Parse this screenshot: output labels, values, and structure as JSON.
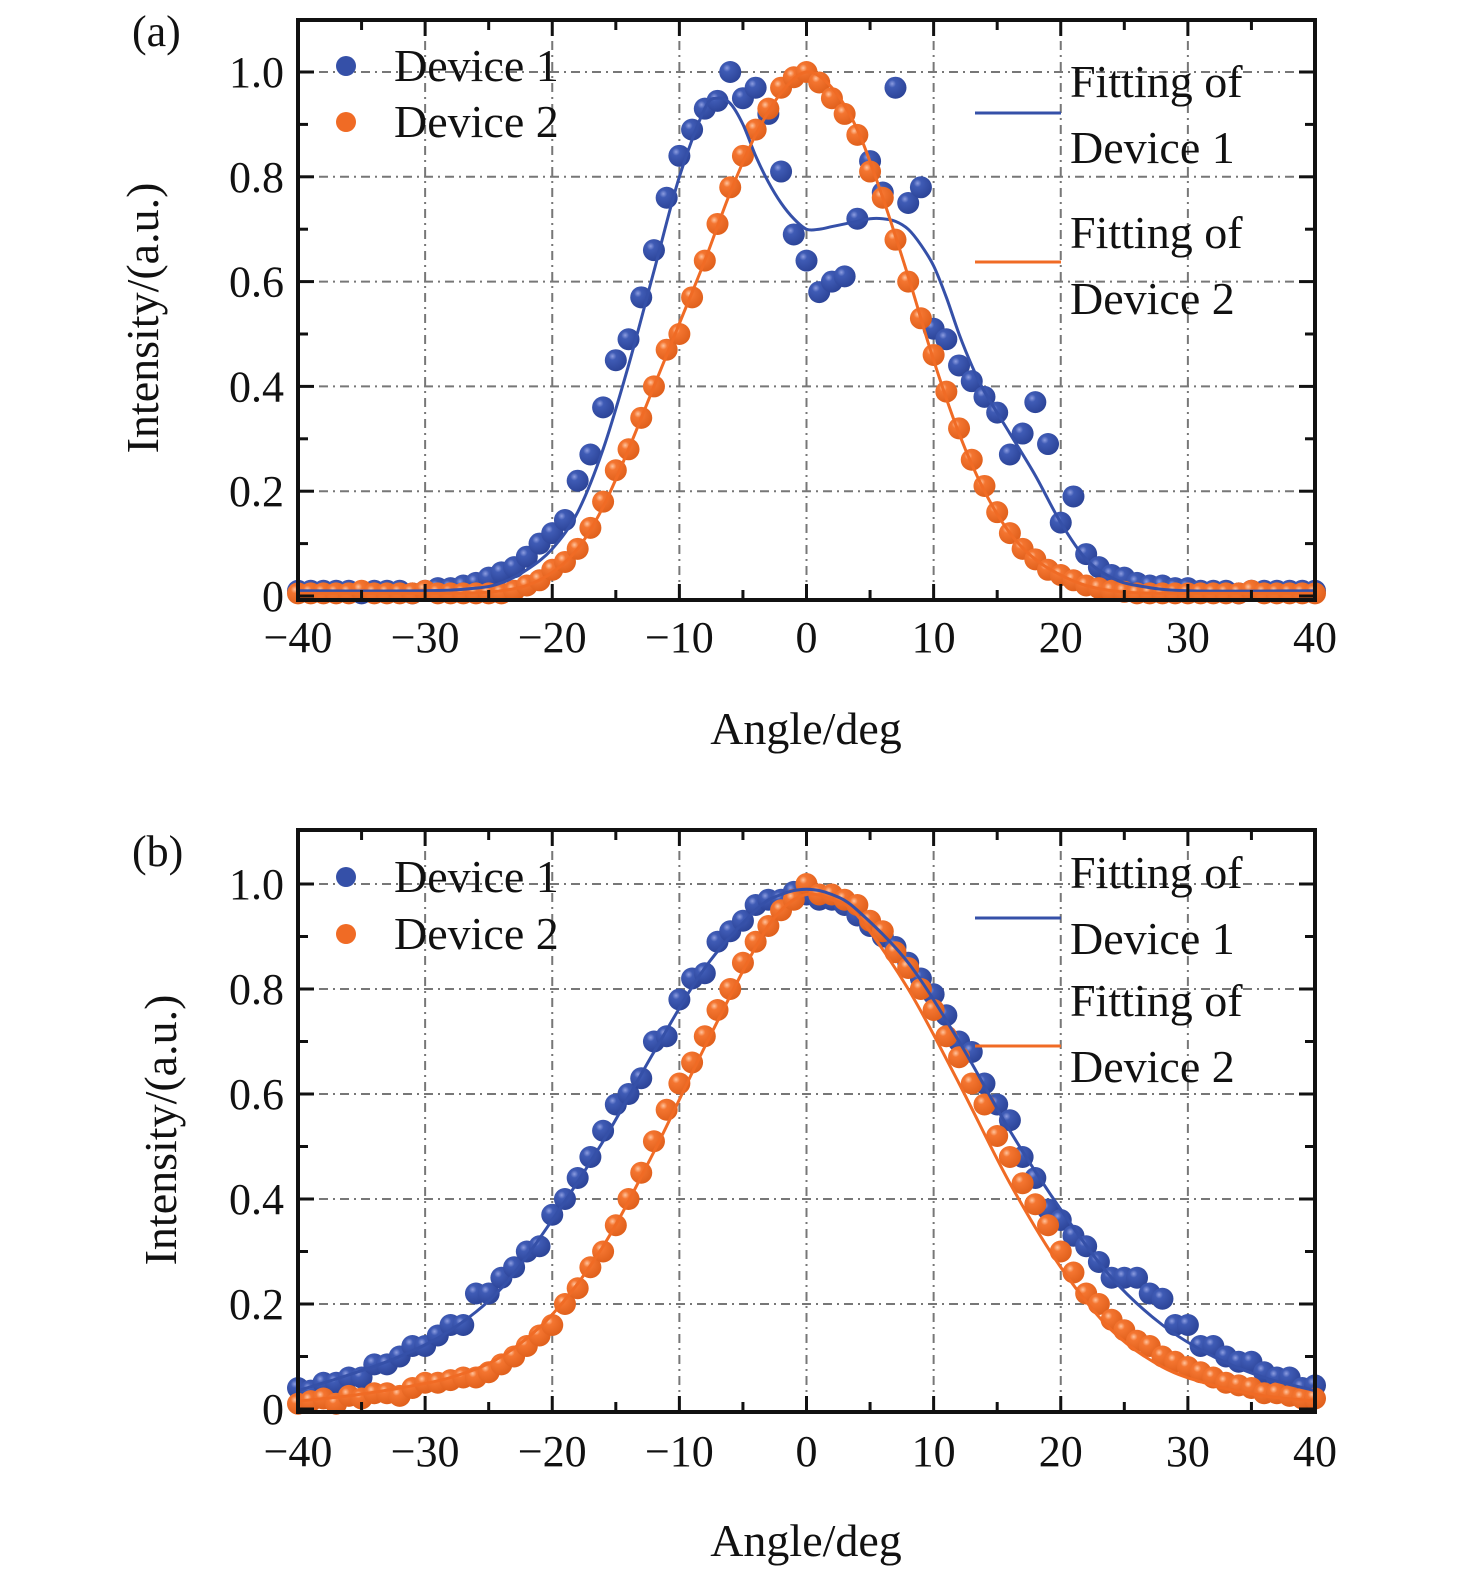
{
  "colors": {
    "device1": "#3550a8",
    "device2": "#f06b25",
    "grid": "#777777",
    "axis": "#111111"
  },
  "chart_data": [
    {
      "type": "scatter",
      "panel_label": "(a)",
      "xlabel": "Angle/deg",
      "ylabel": "Intensity/(a.u.)",
      "xlim": [
        -40,
        40
      ],
      "ylim": [
        0,
        1.1
      ],
      "xticks": [
        -40,
        -30,
        -20,
        -10,
        0,
        10,
        20,
        30,
        40
      ],
      "xtick_labels": [
        "−40",
        "−30",
        "−20",
        "−10",
        "0",
        "10",
        "20",
        "30",
        "40"
      ],
      "yticks": [
        0,
        0.2,
        0.4,
        0.6,
        0.8,
        1.0
      ],
      "ytick_labels": [
        "0",
        "0.2",
        "0.4",
        "0.6",
        "0.8",
        "1.0"
      ],
      "grid": true,
      "legend_left": [
        "Device 1",
        "Device 2"
      ],
      "legend_right": [
        [
          "Fitting of",
          "Device 1"
        ],
        [
          "Fitting of",
          "Device 2"
        ]
      ],
      "series": [
        {
          "name": "Device 1",
          "kind": "points",
          "x": [
            -40,
            -39,
            -38,
            -37,
            -36,
            -35,
            -34,
            -33,
            -32,
            -31,
            -30,
            -29,
            -28,
            -27,
            -26,
            -25,
            -24,
            -23,
            -22,
            -21,
            -20,
            -19,
            -18,
            -17,
            -16,
            -15,
            -14,
            -13,
            -12,
            -11,
            -10,
            -9,
            -8,
            -7,
            -6,
            -5,
            -4,
            -3,
            -2,
            -1,
            0,
            1,
            2,
            3,
            4,
            5,
            6,
            7,
            8,
            9,
            10,
            11,
            12,
            13,
            14,
            15,
            16,
            17,
            18,
            19,
            20,
            21,
            22,
            23,
            24,
            25,
            26,
            27,
            28,
            29,
            30,
            31,
            32,
            33,
            34,
            35,
            36,
            37,
            38,
            39,
            40
          ],
          "y": [
            0.01,
            0.01,
            0.01,
            0.01,
            0.01,
            0.005,
            0.01,
            0.01,
            0.01,
            0.005,
            0.01,
            0.015,
            0.015,
            0.02,
            0.025,
            0.035,
            0.045,
            0.055,
            0.075,
            0.1,
            0.12,
            0.145,
            0.22,
            0.27,
            0.36,
            0.45,
            0.49,
            0.57,
            0.66,
            0.76,
            0.84,
            0.89,
            0.93,
            0.945,
            1.0,
            0.95,
            0.97,
            0.92,
            0.81,
            0.69,
            0.64,
            0.58,
            0.6,
            0.61,
            0.72,
            0.83,
            0.77,
            0.97,
            0.75,
            0.78,
            0.51,
            0.49,
            0.44,
            0.41,
            0.38,
            0.35,
            0.27,
            0.31,
            0.37,
            0.29,
            0.14,
            0.19,
            0.08,
            0.055,
            0.04,
            0.035,
            0.025,
            0.02,
            0.02,
            0.015,
            0.015,
            0.01,
            0.01,
            0.01,
            0.005,
            0.01,
            0.01,
            0.01,
            0.01,
            0.01,
            0.01
          ]
        },
        {
          "name": "Device 2",
          "kind": "points",
          "x": [
            -40,
            -39,
            -38,
            -37,
            -36,
            -35,
            -34,
            -33,
            -32,
            -31,
            -30,
            -29,
            -28,
            -27,
            -26,
            -25,
            -24,
            -23,
            -22,
            -21,
            -20,
            -19,
            -18,
            -17,
            -16,
            -15,
            -14,
            -13,
            -12,
            -11,
            -10,
            -9,
            -8,
            -7,
            -6,
            -5,
            -4,
            -3,
            -2,
            -1,
            0,
            1,
            2,
            3,
            4,
            5,
            6,
            7,
            8,
            9,
            10,
            11,
            12,
            13,
            14,
            15,
            16,
            17,
            18,
            19,
            20,
            21,
            22,
            23,
            24,
            25,
            26,
            27,
            28,
            29,
            30,
            31,
            32,
            33,
            34,
            35,
            36,
            37,
            38,
            39,
            40
          ],
          "y": [
            0.005,
            0.005,
            0.005,
            0.005,
            0.005,
            0.01,
            0.005,
            0.005,
            0.005,
            0.005,
            0.01,
            0.005,
            0.005,
            0.005,
            0.005,
            0.005,
            0.005,
            0.01,
            0.02,
            0.03,
            0.05,
            0.065,
            0.09,
            0.13,
            0.18,
            0.24,
            0.28,
            0.34,
            0.4,
            0.47,
            0.5,
            0.57,
            0.64,
            0.71,
            0.78,
            0.84,
            0.89,
            0.93,
            0.97,
            0.99,
            1.0,
            0.98,
            0.95,
            0.92,
            0.88,
            0.81,
            0.76,
            0.68,
            0.6,
            0.53,
            0.46,
            0.39,
            0.32,
            0.26,
            0.21,
            0.16,
            0.12,
            0.09,
            0.07,
            0.05,
            0.04,
            0.03,
            0.02,
            0.015,
            0.01,
            0.008,
            0.005,
            0.005,
            0.005,
            0.005,
            0.005,
            0.005,
            0.005,
            0.005,
            0.005,
            0.01,
            0.005,
            0.005,
            0.005,
            0.005,
            0.005
          ]
        },
        {
          "name": "Fitting of Device 1",
          "kind": "line",
          "x": [
            -40,
            -30,
            -26,
            -24,
            -22,
            -20,
            -18,
            -16,
            -14,
            -12,
            -10,
            -8,
            -7,
            -6,
            -5,
            -4,
            -3,
            -2,
            -1,
            0,
            1,
            2,
            3,
            4,
            5,
            6,
            7,
            8,
            9,
            10,
            11,
            12,
            13,
            14,
            16,
            18,
            20,
            22,
            24,
            26,
            30,
            40
          ],
          "y": [
            0.01,
            0.01,
            0.015,
            0.025,
            0.05,
            0.09,
            0.16,
            0.28,
            0.44,
            0.62,
            0.8,
            0.93,
            0.95,
            0.94,
            0.9,
            0.84,
            0.79,
            0.75,
            0.72,
            0.7,
            0.7,
            0.705,
            0.71,
            0.715,
            0.72,
            0.72,
            0.715,
            0.7,
            0.67,
            0.63,
            0.57,
            0.5,
            0.44,
            0.39,
            0.31,
            0.23,
            0.14,
            0.07,
            0.035,
            0.02,
            0.01,
            0.01
          ]
        },
        {
          "name": "Fitting of Device 2",
          "kind": "line",
          "x": [
            -40,
            -30,
            -26,
            -24,
            -22,
            -20,
            -18,
            -16,
            -14,
            -12,
            -10,
            -8,
            -6,
            -4,
            -2,
            0,
            2,
            4,
            6,
            8,
            10,
            12,
            14,
            16,
            18,
            20,
            22,
            24,
            26,
            30,
            40
          ],
          "y": [
            0.005,
            0.005,
            0.006,
            0.01,
            0.02,
            0.045,
            0.09,
            0.17,
            0.28,
            0.4,
            0.52,
            0.64,
            0.77,
            0.88,
            0.96,
            1.0,
            0.97,
            0.89,
            0.76,
            0.61,
            0.45,
            0.31,
            0.2,
            0.12,
            0.07,
            0.04,
            0.02,
            0.01,
            0.006,
            0.005,
            0.005
          ]
        }
      ]
    },
    {
      "type": "scatter",
      "panel_label": "(b)",
      "xlabel": "Angle/deg",
      "ylabel": "Intensity/(a.u.)",
      "xlim": [
        -40,
        40
      ],
      "ylim": [
        0,
        1.1
      ],
      "xticks": [
        -40,
        -30,
        -20,
        -10,
        0,
        10,
        20,
        30,
        40
      ],
      "xtick_labels": [
        "−40",
        "−30",
        "−20",
        "−10",
        "0",
        "10",
        "20",
        "30",
        "40"
      ],
      "yticks": [
        0,
        0.2,
        0.4,
        0.6,
        0.8,
        1.0
      ],
      "ytick_labels": [
        "0",
        "0.2",
        "0.4",
        "0.6",
        "0.8",
        "1.0"
      ],
      "grid": true,
      "legend_left": [
        "Device 1",
        "Device 2"
      ],
      "legend_right": [
        [
          "Fitting of",
          "Device 1"
        ],
        [
          "Fitting of",
          "Device 2"
        ]
      ],
      "series": [
        {
          "name": "Device 1",
          "kind": "points",
          "x": [
            -40,
            -39,
            -38,
            -37,
            -36,
            -35,
            -34,
            -33,
            -32,
            -31,
            -30,
            -29,
            -28,
            -27,
            -26,
            -25,
            -24,
            -23,
            -22,
            -21,
            -20,
            -19,
            -18,
            -17,
            -16,
            -15,
            -14,
            -13,
            -12,
            -11,
            -10,
            -9,
            -8,
            -7,
            -6,
            -5,
            -4,
            -3,
            -2,
            -1,
            0,
            1,
            2,
            3,
            4,
            5,
            6,
            7,
            8,
            9,
            10,
            11,
            12,
            13,
            14,
            15,
            16,
            17,
            18,
            19,
            20,
            21,
            22,
            23,
            24,
            25,
            26,
            27,
            28,
            29,
            30,
            31,
            32,
            33,
            34,
            35,
            36,
            37,
            38,
            39,
            40
          ],
          "y": [
            0.04,
            0.035,
            0.05,
            0.05,
            0.06,
            0.06,
            0.085,
            0.085,
            0.1,
            0.12,
            0.12,
            0.14,
            0.16,
            0.16,
            0.22,
            0.22,
            0.25,
            0.27,
            0.3,
            0.31,
            0.37,
            0.4,
            0.44,
            0.48,
            0.53,
            0.58,
            0.6,
            0.63,
            0.7,
            0.71,
            0.78,
            0.82,
            0.83,
            0.89,
            0.91,
            0.93,
            0.96,
            0.97,
            0.97,
            0.985,
            0.98,
            0.97,
            0.97,
            0.96,
            0.94,
            0.92,
            0.9,
            0.88,
            0.85,
            0.82,
            0.79,
            0.75,
            0.7,
            0.68,
            0.62,
            0.58,
            0.55,
            0.48,
            0.44,
            0.38,
            0.36,
            0.33,
            0.31,
            0.28,
            0.25,
            0.25,
            0.25,
            0.22,
            0.21,
            0.16,
            0.16,
            0.12,
            0.12,
            0.1,
            0.09,
            0.09,
            0.07,
            0.06,
            0.06,
            0.04,
            0.045
          ]
        },
        {
          "name": "Device 2",
          "kind": "points",
          "x": [
            -40,
            -39,
            -38,
            -37,
            -36,
            -35,
            -34,
            -33,
            -32,
            -31,
            -30,
            -29,
            -28,
            -27,
            -26,
            -25,
            -24,
            -23,
            -22,
            -21,
            -20,
            -19,
            -18,
            -17,
            -16,
            -15,
            -14,
            -13,
            -12,
            -11,
            -10,
            -9,
            -8,
            -7,
            -6,
            -5,
            -4,
            -3,
            -2,
            -1,
            0,
            1,
            2,
            3,
            4,
            5,
            6,
            7,
            8,
            9,
            10,
            11,
            12,
            13,
            14,
            15,
            16,
            17,
            18,
            19,
            20,
            21,
            22,
            23,
            24,
            25,
            26,
            27,
            28,
            29,
            30,
            31,
            32,
            33,
            34,
            35,
            36,
            37,
            38,
            39,
            40
          ],
          "y": [
            0.01,
            0.015,
            0.02,
            0.01,
            0.025,
            0.02,
            0.03,
            0.03,
            0.025,
            0.04,
            0.05,
            0.05,
            0.055,
            0.06,
            0.06,
            0.07,
            0.085,
            0.1,
            0.12,
            0.14,
            0.16,
            0.2,
            0.23,
            0.27,
            0.3,
            0.35,
            0.4,
            0.45,
            0.51,
            0.57,
            0.62,
            0.66,
            0.71,
            0.76,
            0.8,
            0.85,
            0.89,
            0.92,
            0.95,
            0.97,
            1.0,
            0.98,
            0.98,
            0.97,
            0.96,
            0.93,
            0.91,
            0.87,
            0.84,
            0.8,
            0.76,
            0.71,
            0.67,
            0.62,
            0.58,
            0.52,
            0.48,
            0.43,
            0.39,
            0.35,
            0.3,
            0.26,
            0.22,
            0.2,
            0.17,
            0.15,
            0.13,
            0.12,
            0.1,
            0.09,
            0.08,
            0.07,
            0.06,
            0.05,
            0.045,
            0.04,
            0.03,
            0.03,
            0.025,
            0.02,
            0.02
          ]
        },
        {
          "name": "Fitting of Device 1",
          "kind": "line",
          "x": [
            -40,
            -36,
            -32,
            -28,
            -24,
            -20,
            -16,
            -12,
            -8,
            -4,
            -2,
            0,
            2,
            4,
            8,
            12,
            16,
            20,
            24,
            28,
            32,
            36,
            40
          ],
          "y": [
            0.035,
            0.065,
            0.1,
            0.15,
            0.23,
            0.36,
            0.51,
            0.68,
            0.84,
            0.95,
            0.98,
            0.99,
            0.98,
            0.95,
            0.85,
            0.7,
            0.53,
            0.38,
            0.25,
            0.16,
            0.1,
            0.06,
            0.035
          ]
        },
        {
          "name": "Fitting of Device 2",
          "kind": "line",
          "x": [
            -40,
            -36,
            -32,
            -28,
            -24,
            -20,
            -16,
            -12,
            -8,
            -4,
            -2,
            0,
            2,
            4,
            8,
            12,
            16,
            20,
            24,
            28,
            32,
            36,
            40
          ],
          "y": [
            0.015,
            0.025,
            0.04,
            0.06,
            0.1,
            0.18,
            0.31,
            0.49,
            0.69,
            0.88,
            0.95,
            0.98,
            0.97,
            0.94,
            0.8,
            0.62,
            0.43,
            0.27,
            0.15,
            0.08,
            0.045,
            0.025,
            0.015
          ]
        }
      ]
    }
  ]
}
